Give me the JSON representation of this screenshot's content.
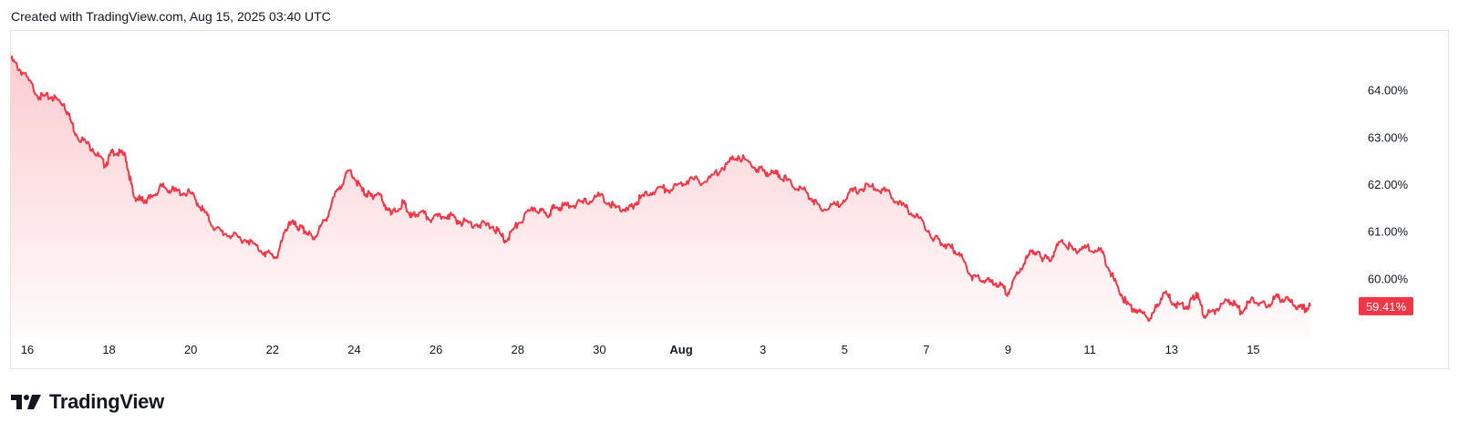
{
  "header": {
    "created_text": "Created with TradingView.com, Aug 15, 2025 03:40 UTC"
  },
  "footer": {
    "brand": "TradingView",
    "logo_icon": "tradingview-logo-icon"
  },
  "colors": {
    "line": "#f23645",
    "fill_top": "#f23645",
    "last_price_bg": "#f23645",
    "grid_border": "#e0e3eb"
  },
  "chart_data": {
    "type": "area",
    "title": "",
    "xlabel": "",
    "ylabel": "",
    "ylim": [
      58.75,
      65.25
    ],
    "y_ticks": [
      60,
      61,
      62,
      63,
      64
    ],
    "y_tick_labels": [
      "60.00%",
      "61.00%",
      "62.00%",
      "63.00%",
      "64.00%"
    ],
    "x_ticks": [
      {
        "label": "16",
        "x": 0.4,
        "bold": false
      },
      {
        "label": "18",
        "x": 2.4,
        "bold": false
      },
      {
        "label": "20",
        "x": 4.4,
        "bold": false
      },
      {
        "label": "22",
        "x": 6.4,
        "bold": false
      },
      {
        "label": "24",
        "x": 8.4,
        "bold": false
      },
      {
        "label": "26",
        "x": 10.4,
        "bold": false
      },
      {
        "label": "28",
        "x": 12.4,
        "bold": false
      },
      {
        "label": "30",
        "x": 14.4,
        "bold": false
      },
      {
        "label": "Aug",
        "x": 16.4,
        "bold": true
      },
      {
        "label": "3",
        "x": 18.4,
        "bold": false
      },
      {
        "label": "5",
        "x": 20.4,
        "bold": false
      },
      {
        "label": "7",
        "x": 22.4,
        "bold": false
      },
      {
        "label": "9",
        "x": 24.4,
        "bold": false
      },
      {
        "label": "11",
        "x": 26.4,
        "bold": false
      },
      {
        "label": "13",
        "x": 28.4,
        "bold": false
      },
      {
        "label": "15",
        "x": 30.4,
        "bold": false
      }
    ],
    "xlim": [
      0,
      32.8
    ],
    "last_value_label": "59.41%",
    "last_value": 59.41,
    "series": [
      {
        "x": [
          0,
          0.3,
          0.7,
          1.0,
          1.3,
          1.6,
          2.0,
          2.3,
          2.5,
          2.8,
          3.0,
          3.2,
          3.4,
          3.7,
          4.0,
          4.4,
          4.7,
          5.0,
          5.4,
          5.8,
          6.2,
          6.5,
          6.8,
          7.0,
          7.2,
          7.4,
          7.7,
          8.0,
          8.3,
          8.6,
          8.8,
          9.0,
          9.3,
          9.6,
          9.8,
          10.0,
          10.3,
          10.7,
          11.0,
          11.4,
          11.8,
          12.1,
          12.4,
          12.8,
          13.1,
          13.3,
          13.6,
          14.0,
          14.4,
          14.8,
          15.1,
          15.4,
          15.8,
          16.2,
          16.6,
          17.0,
          17.4,
          17.8,
          18.2,
          18.5,
          18.8,
          19.1,
          19.5,
          19.8,
          20.2,
          20.6,
          21.0,
          21.4,
          21.8,
          22.2,
          22.6,
          22.9,
          23.2,
          23.5,
          23.8,
          24.1,
          24.4,
          24.7,
          25.0,
          25.2,
          25.4,
          25.7,
          26.0,
          26.3,
          26.7,
          27.0,
          27.3,
          27.6,
          27.9,
          28.2,
          28.5,
          28.8,
          29.0,
          29.2,
          29.5,
          29.8,
          30.1,
          30.4,
          30.7,
          31.0,
          31.3,
          31.6,
          31.8
        ],
        "values": [
          64.65,
          64.35,
          63.85,
          63.85,
          63.7,
          63.05,
          62.75,
          62.4,
          62.7,
          62.6,
          61.75,
          61.65,
          61.7,
          61.95,
          61.85,
          61.8,
          61.45,
          61.05,
          60.9,
          60.8,
          60.55,
          60.45,
          61.2,
          61.1,
          61.0,
          60.85,
          61.25,
          61.9,
          62.3,
          61.85,
          61.75,
          61.8,
          61.35,
          61.6,
          61.3,
          61.4,
          61.25,
          61.35,
          61.2,
          61.15,
          61.1,
          60.8,
          61.15,
          61.5,
          61.35,
          61.5,
          61.55,
          61.6,
          61.75,
          61.5,
          61.45,
          61.7,
          61.9,
          61.9,
          62.1,
          62.05,
          62.35,
          62.6,
          62.35,
          62.25,
          62.2,
          62.0,
          61.8,
          61.5,
          61.55,
          61.85,
          61.95,
          61.85,
          61.55,
          61.3,
          60.85,
          60.7,
          60.55,
          60.05,
          59.95,
          59.9,
          59.7,
          60.2,
          60.6,
          60.45,
          60.4,
          60.8,
          60.6,
          60.65,
          60.55,
          59.95,
          59.45,
          59.3,
          59.15,
          59.7,
          59.45,
          59.4,
          59.7,
          59.2,
          59.35,
          59.55,
          59.3,
          59.55,
          59.42,
          59.6,
          59.5,
          59.35,
          59.41
        ]
      }
    ]
  }
}
